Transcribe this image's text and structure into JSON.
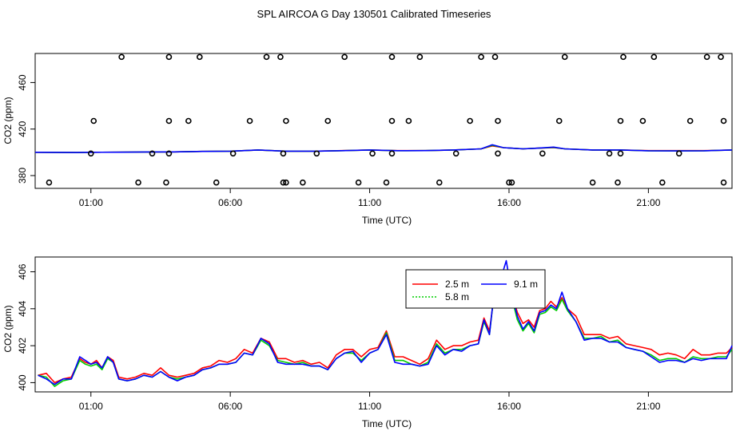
{
  "title": "SPL AIRCOA G  Day 130501  Calibrated Timeseries",
  "chart_data": [
    {
      "type": "line",
      "xlabel": "Time (UTC)",
      "ylabel": "CO2 (ppm)",
      "xlim": [
        -1.0,
        24.0
      ],
      "ylim": [
        369,
        485
      ],
      "x_ticks": [
        {
          "value": 1,
          "label": "01:00"
        },
        {
          "value": 6,
          "label": "06:00"
        },
        {
          "value": 11,
          "label": "11:00"
        },
        {
          "value": 16,
          "label": "16:00"
        },
        {
          "value": 21,
          "label": "21:00"
        }
      ],
      "y_ticks": [
        380,
        420,
        460
      ],
      "series": [
        {
          "color": "#ff0000",
          "x": [
            -1.0,
            0.5,
            1.0,
            2.0,
            3.0,
            4.0,
            5.0,
            6.0,
            7.0,
            8.0,
            9.0,
            10.0,
            11.0,
            12.0,
            13.0,
            14.0,
            15.0,
            15.4,
            15.8,
            16.5,
            17.0,
            17.6,
            18.0,
            19.0,
            20.0,
            21.0,
            22.0,
            23.0,
            24.0
          ],
          "y": [
            400,
            399.8,
            400,
            400.1,
            400.3,
            400.4,
            400.8,
            401,
            402,
            401,
            401,
            401.5,
            402,
            401.5,
            401.5,
            402,
            403,
            405.5,
            404,
            403,
            403.5,
            404,
            403,
            402,
            402,
            401.5,
            401.5,
            401.5,
            402
          ]
        },
        {
          "color": "#00cd00",
          "x": [
            -1.0,
            0.5,
            1.0,
            2.0,
            3.0,
            4.0,
            5.0,
            6.0,
            7.0,
            8.0,
            9.0,
            10.0,
            11.0,
            12.0,
            13.0,
            14.0,
            15.0,
            15.4,
            15.8,
            16.5,
            17.0,
            17.6,
            18.0,
            19.0,
            20.0,
            21.0,
            22.0,
            23.0,
            24.0
          ],
          "y": [
            400,
            399.8,
            400,
            400.1,
            400.3,
            400.4,
            400.8,
            401,
            402,
            401,
            401,
            401.4,
            402,
            401.4,
            401.5,
            402,
            403,
            406,
            404,
            403,
            403.5,
            404.2,
            403,
            402,
            402,
            401.3,
            401.2,
            401.3,
            402
          ]
        },
        {
          "color": "#0000ff",
          "x": [
            -1.0,
            0.5,
            1.0,
            2.0,
            3.0,
            4.0,
            5.0,
            6.0,
            7.0,
            8.0,
            9.0,
            10.0,
            11.0,
            12.0,
            13.0,
            14.0,
            15.0,
            15.4,
            15.8,
            16.5,
            17.0,
            17.6,
            18.0,
            19.0,
            20.0,
            21.0,
            22.0,
            23.0,
            24.0
          ],
          "y": [
            400,
            399.8,
            400,
            400.1,
            400.3,
            400.4,
            400.8,
            401,
            402,
            401,
            401,
            401.4,
            402,
            401.4,
            401.5,
            402,
            403,
            406.5,
            404,
            403,
            403.5,
            404.5,
            403,
            402,
            402,
            401.3,
            401.2,
            401.3,
            402
          ]
        }
      ],
      "markers": {
        "symbol": "open-circle",
        "x": [
          -0.5,
          1.0,
          1.1,
          2.1,
          2.7,
          3.2,
          3.7,
          3.8,
          3.8,
          3.8,
          4.5,
          4.9,
          5.5,
          6.1,
          6.7,
          7.3,
          7.8,
          7.9,
          7.9,
          8.0,
          8.0,
          8.6,
          9.1,
          9.5,
          10.1,
          10.6,
          11.1,
          11.6,
          11.8,
          11.8,
          11.8,
          12.4,
          12.8,
          13.5,
          14.1,
          14.6,
          15.0,
          15.5,
          15.6,
          15.6,
          16.0,
          16.1,
          17.2,
          17.8,
          18.0,
          19.0,
          19.6,
          19.9,
          20.0,
          20.0,
          20.1,
          20.8,
          21.2,
          21.5,
          22.1,
          22.5,
          23.1,
          23.6,
          23.7,
          23.7
        ],
        "y": [
          374,
          399,
          427,
          482,
          374,
          399,
          374,
          399,
          427,
          482,
          427,
          482,
          374,
          399,
          427,
          482,
          482,
          374,
          399,
          427,
          374,
          374,
          399,
          427,
          482,
          374,
          399,
          374,
          427,
          482,
          399,
          427,
          482,
          374,
          399,
          427,
          482,
          482,
          427,
          399,
          374,
          374,
          399,
          427,
          482,
          374,
          399,
          374,
          399,
          427,
          482,
          427,
          482,
          374,
          399,
          427,
          482,
          482,
          427,
          374
        ]
      }
    },
    {
      "type": "line",
      "xlabel": "Time (UTC)",
      "ylabel": "CO2 (ppm)",
      "xlim": [
        -1.0,
        24.0
      ],
      "ylim": [
        399.5,
        406.8
      ],
      "x_ticks": [
        {
          "value": 1,
          "label": "01:00"
        },
        {
          "value": 6,
          "label": "06:00"
        },
        {
          "value": 11,
          "label": "11:00"
        },
        {
          "value": 16,
          "label": "16:00"
        },
        {
          "value": 21,
          "label": "21:00"
        }
      ],
      "y_ticks": [
        400,
        402,
        404,
        406
      ],
      "legend": {
        "placement": "top-center",
        "layout": "two-column"
      },
      "series": [
        {
          "name": "2.5 m",
          "color": "#ff0000",
          "x": [
            -0.9,
            -0.6,
            -0.3,
            0.0,
            0.3,
            0.6,
            0.8,
            1.0,
            1.2,
            1.4,
            1.6,
            1.8,
            2.0,
            2.3,
            2.6,
            2.9,
            3.2,
            3.5,
            3.8,
            4.1,
            4.4,
            4.7,
            5.0,
            5.3,
            5.6,
            5.9,
            6.2,
            6.5,
            6.8,
            7.1,
            7.4,
            7.7,
            8.0,
            8.3,
            8.6,
            8.9,
            9.2,
            9.5,
            9.8,
            10.1,
            10.4,
            10.7,
            11.0,
            11.3,
            11.6,
            11.9,
            12.2,
            12.5,
            12.8,
            13.1,
            13.4,
            13.7,
            14.0,
            14.3,
            14.6,
            14.9,
            15.1,
            15.3,
            15.5,
            15.7,
            15.9,
            16.1,
            16.3,
            16.5,
            16.7,
            16.9,
            17.1,
            17.3,
            17.5,
            17.7,
            17.9,
            18.1,
            18.4,
            18.7,
            19.0,
            19.3,
            19.6,
            19.9,
            20.2,
            20.5,
            20.8,
            21.1,
            21.4,
            21.7,
            22.0,
            22.3,
            22.6,
            22.9,
            23.2,
            23.5,
            23.8,
            24.0
          ],
          "y": [
            400.4,
            400.5,
            400.0,
            400.2,
            400.3,
            401.3,
            401.1,
            401.0,
            401.2,
            400.8,
            401.4,
            401.2,
            400.3,
            400.2,
            400.3,
            400.5,
            400.4,
            400.8,
            400.4,
            400.3,
            400.4,
            400.5,
            400.8,
            400.9,
            401.2,
            401.1,
            401.3,
            401.8,
            401.6,
            402.4,
            402.2,
            401.3,
            401.3,
            401.1,
            401.2,
            401.0,
            401.1,
            400.8,
            401.5,
            401.8,
            401.8,
            401.4,
            401.8,
            401.9,
            402.8,
            401.4,
            401.4,
            401.2,
            401.0,
            401.3,
            402.3,
            401.8,
            402.0,
            402.0,
            402.2,
            402.3,
            403.5,
            402.8,
            405.1,
            405.3,
            405.9,
            404.8,
            403.8,
            403.2,
            403.4,
            403.0,
            403.9,
            404.0,
            404.4,
            404.1,
            404.6,
            404.0,
            403.6,
            402.6,
            402.6,
            402.6,
            402.4,
            402.5,
            402.1,
            402.0,
            401.9,
            401.8,
            401.5,
            401.6,
            401.5,
            401.3,
            401.8,
            401.5,
            401.5,
            401.6,
            401.6,
            401.9
          ]
        },
        {
          "name": "5.8 m",
          "color": "#00cd00",
          "x": [
            -0.9,
            -0.6,
            -0.3,
            0.0,
            0.3,
            0.6,
            0.8,
            1.0,
            1.2,
            1.4,
            1.6,
            1.8,
            2.0,
            2.3,
            2.6,
            2.9,
            3.2,
            3.5,
            3.8,
            4.1,
            4.4,
            4.7,
            5.0,
            5.3,
            5.6,
            5.9,
            6.2,
            6.5,
            6.8,
            7.1,
            7.4,
            7.7,
            8.0,
            8.3,
            8.6,
            8.9,
            9.2,
            9.5,
            9.8,
            10.1,
            10.4,
            10.7,
            11.0,
            11.3,
            11.6,
            11.9,
            12.2,
            12.5,
            12.8,
            13.1,
            13.4,
            13.7,
            14.0,
            14.3,
            14.6,
            14.9,
            15.1,
            15.3,
            15.5,
            15.7,
            15.9,
            16.1,
            16.3,
            16.5,
            16.7,
            16.9,
            17.1,
            17.3,
            17.5,
            17.7,
            17.9,
            18.1,
            18.4,
            18.7,
            19.0,
            19.3,
            19.6,
            19.9,
            20.2,
            20.5,
            20.8,
            21.1,
            21.4,
            21.7,
            22.0,
            22.3,
            22.6,
            22.9,
            23.2,
            23.5,
            23.8,
            24.0
          ],
          "y": [
            400.4,
            400.3,
            399.8,
            400.1,
            400.2,
            401.2,
            401.0,
            400.9,
            401.0,
            400.7,
            401.3,
            401.1,
            400.2,
            400.1,
            400.2,
            400.4,
            400.3,
            400.6,
            400.3,
            400.2,
            400.3,
            400.4,
            400.7,
            400.8,
            401.0,
            401.0,
            401.1,
            401.6,
            401.5,
            402.3,
            402.0,
            401.2,
            401.1,
            401.0,
            401.1,
            400.9,
            400.9,
            400.7,
            401.3,
            401.6,
            401.6,
            401.2,
            401.6,
            401.8,
            402.7,
            401.2,
            401.2,
            401.0,
            400.9,
            401.1,
            402.1,
            401.6,
            401.8,
            401.8,
            402.0,
            402.1,
            403.3,
            402.6,
            405.3,
            405.4,
            406.0,
            404.6,
            403.4,
            402.8,
            403.2,
            402.7,
            403.7,
            403.8,
            404.1,
            403.9,
            404.5,
            403.9,
            403.3,
            402.4,
            402.4,
            402.5,
            402.2,
            402.3,
            401.9,
            401.8,
            401.7,
            401.5,
            401.2,
            401.3,
            401.3,
            401.1,
            401.4,
            401.3,
            401.3,
            401.4,
            401.4,
            401.8
          ]
        },
        {
          "name": "9.1 m",
          "color": "#0000ff",
          "x": [
            -0.9,
            -0.6,
            -0.3,
            0.0,
            0.3,
            0.6,
            0.8,
            1.0,
            1.2,
            1.4,
            1.6,
            1.8,
            2.0,
            2.3,
            2.6,
            2.9,
            3.2,
            3.5,
            3.8,
            4.1,
            4.4,
            4.7,
            5.0,
            5.3,
            5.6,
            5.9,
            6.2,
            6.5,
            6.8,
            7.1,
            7.4,
            7.7,
            8.0,
            8.3,
            8.6,
            8.9,
            9.2,
            9.5,
            9.8,
            10.1,
            10.4,
            10.7,
            11.0,
            11.3,
            11.6,
            11.9,
            12.2,
            12.5,
            12.8,
            13.1,
            13.4,
            13.7,
            14.0,
            14.3,
            14.6,
            14.9,
            15.1,
            15.3,
            15.5,
            15.7,
            15.9,
            16.1,
            16.3,
            16.5,
            16.7,
            16.9,
            17.1,
            17.3,
            17.5,
            17.7,
            17.9,
            18.1,
            18.4,
            18.7,
            19.0,
            19.3,
            19.6,
            19.9,
            20.2,
            20.5,
            20.8,
            21.1,
            21.4,
            21.7,
            22.0,
            22.3,
            22.6,
            22.9,
            23.2,
            23.5,
            23.8,
            24.0
          ],
          "y": [
            400.4,
            400.2,
            399.9,
            400.2,
            400.2,
            401.4,
            401.2,
            401.0,
            401.1,
            400.8,
            401.4,
            401.1,
            400.2,
            400.1,
            400.2,
            400.4,
            400.3,
            400.6,
            400.3,
            400.1,
            400.3,
            400.4,
            400.7,
            400.8,
            401.0,
            401.0,
            401.1,
            401.6,
            401.5,
            402.4,
            402.1,
            401.1,
            401.0,
            401.0,
            401.0,
            400.9,
            400.9,
            400.7,
            401.3,
            401.6,
            401.7,
            401.1,
            401.6,
            401.8,
            402.6,
            401.1,
            401.0,
            401.0,
            400.9,
            401.0,
            402.0,
            401.5,
            401.8,
            401.7,
            402.0,
            402.1,
            403.4,
            402.6,
            405.4,
            405.6,
            406.6,
            404.8,
            403.6,
            402.9,
            403.3,
            402.8,
            403.8,
            403.9,
            404.2,
            404.0,
            404.9,
            404.0,
            403.3,
            402.3,
            402.4,
            402.4,
            402.2,
            402.2,
            401.9,
            401.8,
            401.7,
            401.4,
            401.1,
            401.2,
            401.2,
            401.1,
            401.3,
            401.2,
            401.3,
            401.3,
            401.3,
            402.0
          ]
        }
      ]
    }
  ]
}
